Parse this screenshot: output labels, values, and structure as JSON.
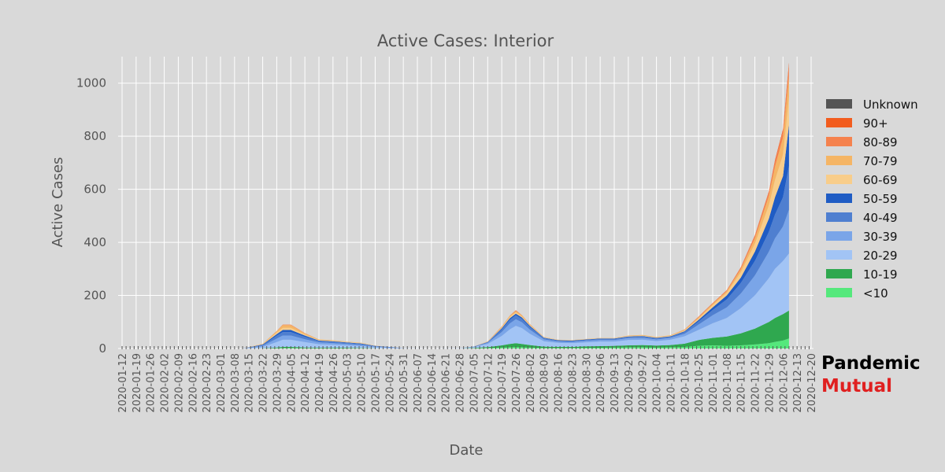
{
  "chart_data": {
    "type": "area",
    "stacked": true,
    "title": "Active Cases: Interior",
    "xlabel": "Date",
    "ylabel": "Active Cases",
    "ylim": [
      0,
      1100
    ],
    "yticks": [
      0,
      200,
      400,
      600,
      800,
      1000
    ],
    "grid": true,
    "legend_position": "right",
    "x_start": "2020-01-12",
    "x_end": "2020-12-20",
    "xticks": [
      "2020-01-12",
      "2020-01-19",
      "2020-01-26",
      "2020-02-02",
      "2020-02-09",
      "2020-02-16",
      "2020-02-23",
      "2020-03-01",
      "2020-03-08",
      "2020-03-15",
      "2020-03-22",
      "2020-03-29",
      "2020-04-05",
      "2020-04-12",
      "2020-04-19",
      "2020-04-26",
      "2020-05-03",
      "2020-05-10",
      "2020-05-17",
      "2020-05-24",
      "2020-05-31",
      "2020-06-07",
      "2020-06-14",
      "2020-06-21",
      "2020-06-28",
      "2020-07-05",
      "2020-07-12",
      "2020-07-19",
      "2020-07-26",
      "2020-08-02",
      "2020-08-09",
      "2020-08-16",
      "2020-08-23",
      "2020-08-30",
      "2020-09-06",
      "2020-09-13",
      "2020-09-20",
      "2020-09-27",
      "2020-10-04",
      "2020-10-11",
      "2020-10-18",
      "2020-10-25",
      "2020-11-01",
      "2020-11-08",
      "2020-11-15",
      "2020-11-22",
      "2020-11-29",
      "2020-12-06",
      "2020-12-13",
      "2020-12-20"
    ],
    "x": [
      "2020-03-12",
      "2020-03-22",
      "2020-03-29",
      "2020-04-01",
      "2020-04-05",
      "2020-04-12",
      "2020-04-19",
      "2020-04-26",
      "2020-05-03",
      "2020-05-10",
      "2020-05-17",
      "2020-05-24",
      "2020-05-31",
      "2020-06-14",
      "2020-06-28",
      "2020-07-05",
      "2020-07-12",
      "2020-07-19",
      "2020-07-23",
      "2020-07-26",
      "2020-07-29",
      "2020-08-02",
      "2020-08-09",
      "2020-08-16",
      "2020-08-23",
      "2020-08-30",
      "2020-09-06",
      "2020-09-13",
      "2020-09-20",
      "2020-09-27",
      "2020-10-04",
      "2020-10-11",
      "2020-10-18",
      "2020-10-25",
      "2020-11-01",
      "2020-11-08",
      "2020-11-15",
      "2020-11-22",
      "2020-11-29",
      "2020-12-02",
      "2020-12-06",
      "2020-12-09"
    ],
    "series": [
      {
        "name": "<10",
        "color": "#55e87c",
        "values": [
          0,
          0,
          1,
          2,
          2,
          1,
          1,
          1,
          1,
          1,
          0,
          0,
          0,
          0,
          0,
          1,
          2,
          4,
          5,
          6,
          5,
          4,
          2,
          2,
          2,
          3,
          3,
          4,
          5,
          5,
          4,
          5,
          6,
          10,
          12,
          10,
          12,
          15,
          20,
          25,
          30,
          38
        ]
      },
      {
        "name": "10-19",
        "color": "#2fa84f",
        "values": [
          0,
          1,
          3,
          4,
          4,
          3,
          2,
          2,
          2,
          1,
          1,
          0,
          0,
          0,
          0,
          1,
          3,
          8,
          12,
          14,
          12,
          9,
          5,
          4,
          4,
          5,
          6,
          6,
          7,
          8,
          7,
          8,
          12,
          22,
          28,
          35,
          45,
          60,
          80,
          90,
          100,
          105
        ]
      },
      {
        "name": "20-29",
        "color": "#a2c4f5",
        "values": [
          0,
          5,
          20,
          27,
          27,
          20,
          13,
          11,
          9,
          7,
          4,
          3,
          1,
          0,
          1,
          3,
          12,
          35,
          55,
          65,
          60,
          42,
          20,
          15,
          14,
          15,
          17,
          16,
          20,
          20,
          17,
          20,
          28,
          38,
          55,
          70,
          95,
          125,
          165,
          185,
          200,
          215
        ]
      },
      {
        "name": "30-39",
        "color": "#7aa5e8",
        "values": [
          0,
          4,
          13,
          16,
          16,
          11,
          7,
          6,
          5,
          4,
          2,
          1,
          0,
          0,
          0,
          1,
          4,
          15,
          22,
          25,
          22,
          16,
          7,
          5,
          5,
          6,
          6,
          6,
          7,
          7,
          6,
          7,
          9,
          20,
          30,
          40,
          55,
          75,
          100,
          115,
          130,
          165
        ]
      },
      {
        "name": "40-49",
        "color": "#4f7fd0",
        "values": [
          0,
          3,
          11,
          13,
          13,
          9,
          5,
          5,
          4,
          4,
          2,
          1,
          0,
          0,
          0,
          1,
          3,
          10,
          14,
          15,
          13,
          10,
          5,
          3,
          3,
          3,
          4,
          4,
          4,
          5,
          4,
          4,
          7,
          12,
          20,
          30,
          40,
          55,
          75,
          90,
          110,
          165
        ]
      },
      {
        "name": "50-59",
        "color": "#1f5cc4",
        "values": [
          0,
          2,
          6,
          8,
          8,
          5,
          2,
          2,
          2,
          2,
          1,
          1,
          0,
          0,
          0,
          0,
          1,
          4,
          6,
          6,
          5,
          4,
          2,
          2,
          2,
          2,
          2,
          2,
          2,
          2,
          2,
          2,
          3,
          6,
          10,
          15,
          20,
          35,
          50,
          65,
          80,
          155
        ]
      },
      {
        "name": "60-69",
        "color": "#f8cd8a",
        "values": [
          0,
          2,
          6,
          8,
          8,
          4,
          2,
          2,
          2,
          2,
          1,
          0,
          0,
          0,
          0,
          0,
          1,
          3,
          5,
          5,
          4,
          3,
          2,
          1,
          1,
          1,
          1,
          1,
          2,
          2,
          2,
          2,
          3,
          5,
          8,
          10,
          20,
          30,
          50,
          65,
          80,
          105
        ]
      },
      {
        "name": "70-79",
        "color": "#f5b565",
        "values": [
          0,
          1,
          5,
          10,
          10,
          4,
          2,
          2,
          1,
          1,
          0,
          0,
          0,
          0,
          0,
          0,
          1,
          3,
          4,
          5,
          4,
          3,
          1,
          1,
          1,
          1,
          1,
          1,
          2,
          2,
          2,
          2,
          3,
          4,
          5,
          6,
          12,
          20,
          35,
          50,
          65,
          80
        ]
      },
      {
        "name": "80-89",
        "color": "#f5824e",
        "values": [
          0,
          0,
          1,
          2,
          2,
          1,
          0,
          0,
          0,
          0,
          0,
          0,
          0,
          0,
          0,
          0,
          0,
          1,
          1,
          2,
          1,
          1,
          0,
          0,
          0,
          0,
          0,
          0,
          0,
          0,
          0,
          0,
          1,
          2,
          2,
          3,
          6,
          10,
          15,
          20,
          25,
          40
        ]
      },
      {
        "name": "90+",
        "color": "#f25c1e",
        "values": [
          0,
          0,
          0,
          0,
          0,
          0,
          0,
          0,
          0,
          0,
          0,
          0,
          0,
          0,
          0,
          0,
          0,
          0,
          0,
          1,
          0,
          0,
          0,
          0,
          0,
          0,
          0,
          0,
          0,
          0,
          0,
          0,
          0,
          1,
          1,
          1,
          1,
          2,
          3,
          5,
          7,
          10
        ]
      },
      {
        "name": "Unknown",
        "color": "#555555",
        "values": [
          0,
          0,
          0,
          0,
          0,
          0,
          0,
          0,
          0,
          0,
          0,
          0,
          0,
          0,
          0,
          0,
          0,
          0,
          0,
          0,
          0,
          0,
          0,
          0,
          0,
          0,
          0,
          0,
          0,
          0,
          0,
          0,
          0,
          0,
          0,
          0,
          0,
          0,
          0,
          0,
          0,
          0
        ]
      }
    ]
  },
  "brand": {
    "line1": "Pandemic",
    "line2": "Mutual"
  }
}
